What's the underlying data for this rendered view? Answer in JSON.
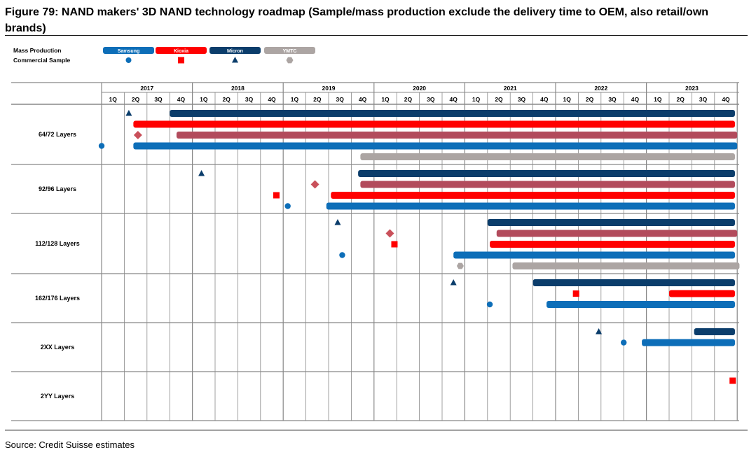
{
  "title": "Figure 79: NAND makers' 3D NAND technology roadmap (Sample/mass production exclude the delivery time to OEM, also retail/own brands)",
  "source": "Source: Credit Suisse estimates",
  "colors": {
    "Samsung": "#0d6eb8",
    "Kioxia": "#ff0000",
    "Micron": "#0b3d6b",
    "YMTC": "#aca5a3",
    "sample_diamond": "#c9505a",
    "bar_micron_alt": "#b24b5c",
    "grid": "#888888"
  },
  "chart_data": {
    "type": "gantt",
    "legend": {
      "placement": "top-left",
      "row_labels": [
        "Mass Production",
        "Commercial Sample"
      ],
      "entries": [
        {
          "name": "Samsung",
          "color": "#0d6eb8",
          "marker": "circle"
        },
        {
          "name": "Kioxia",
          "color": "#ff0000",
          "marker": "square"
        },
        {
          "name": "Micron",
          "color": "#0b3d6b",
          "marker": "triangle"
        },
        {
          "name": "YMTC",
          "color": "#aca5a3",
          "marker": "hexagon"
        }
      ]
    },
    "years": [
      "2017",
      "2018",
      "2019",
      "2020",
      "2021",
      "2022",
      "2023"
    ],
    "quarters": [
      "1Q",
      "2Q",
      "3Q",
      "4Q"
    ],
    "rows": [
      {
        "label": "64/72 Layers",
        "bars": [
          {
            "color": "#0b3d6b",
            "start": 3.0,
            "end": 27.9
          },
          {
            "color": "#ff0000",
            "start": 1.4,
            "end": 27.9
          },
          {
            "color": "#b24b5c",
            "start": 3.3,
            "end": 28.0
          },
          {
            "color": "#0d6eb8",
            "start": 1.4,
            "end": 28.0
          },
          {
            "color": "#aca5a3",
            "start": 11.4,
            "end": 27.9
          }
        ],
        "markers": [
          {
            "shape": "triangle",
            "color": "#0b3d6b",
            "x": 1.2,
            "lane": 0
          },
          {
            "shape": "diamond",
            "color": "#c9505a",
            "x": 1.6,
            "lane": 2
          },
          {
            "shape": "circle",
            "color": "#0d6eb8",
            "x": 0.0,
            "lane": 3
          }
        ]
      },
      {
        "label": "92/96 Layers",
        "bars": [
          {
            "color": "#0b3d6b",
            "start": 11.3,
            "end": 27.9
          },
          {
            "color": "#b24b5c",
            "start": 11.4,
            "end": 27.9
          },
          {
            "color": "#ff0000",
            "start": 10.1,
            "end": 27.9
          },
          {
            "color": "#0d6eb8",
            "start": 9.9,
            "end": 27.9
          }
        ],
        "markers": [
          {
            "shape": "triangle",
            "color": "#0b3d6b",
            "x": 4.4,
            "lane": 0
          },
          {
            "shape": "diamond",
            "color": "#c9505a",
            "x": 9.4,
            "lane": 1
          },
          {
            "shape": "square",
            "color": "#ff0000",
            "x": 7.7,
            "lane": 2
          },
          {
            "shape": "circle",
            "color": "#0d6eb8",
            "x": 8.2,
            "lane": 3
          }
        ]
      },
      {
        "label": "112/128 Layers",
        "bars": [
          {
            "color": "#0b3d6b",
            "start": 17.0,
            "end": 27.9
          },
          {
            "color": "#b24b5c",
            "start": 17.4,
            "end": 28.0
          },
          {
            "color": "#ff0000",
            "start": 17.1,
            "end": 27.9
          },
          {
            "color": "#0d6eb8",
            "start": 15.5,
            "end": 27.9
          },
          {
            "color": "#aca5a3",
            "start": 18.1,
            "end": 28.1
          }
        ],
        "markers": [
          {
            "shape": "triangle",
            "color": "#0b3d6b",
            "x": 10.4,
            "lane": 0
          },
          {
            "shape": "diamond",
            "color": "#c9505a",
            "x": 12.7,
            "lane": 1
          },
          {
            "shape": "square",
            "color": "#ff0000",
            "x": 12.9,
            "lane": 2
          },
          {
            "shape": "circle",
            "color": "#0d6eb8",
            "x": 10.6,
            "lane": 3
          },
          {
            "shape": "hexagon",
            "color": "#aca5a3",
            "x": 15.8,
            "lane": 4
          }
        ]
      },
      {
        "label": "162/176 Layers",
        "bars": [
          {
            "color": "#0b3d6b",
            "start": 19.0,
            "end": 27.9
          },
          {
            "color": "#ff0000",
            "start": 25.0,
            "end": 27.9
          },
          {
            "color": "#0d6eb8",
            "start": 19.6,
            "end": 27.9
          }
        ],
        "markers": [
          {
            "shape": "triangle",
            "color": "#0b3d6b",
            "x": 15.5,
            "lane": 0
          },
          {
            "shape": "square",
            "color": "#ff0000",
            "x": 20.9,
            "lane": 1
          },
          {
            "shape": "circle",
            "color": "#0d6eb8",
            "x": 17.1,
            "lane": 2
          }
        ]
      },
      {
        "label": "2XX Layers",
        "bars": [
          {
            "color": "#0b3d6b",
            "start": 26.1,
            "end": 27.9
          },
          {
            "color": "#0d6eb8",
            "start": 23.8,
            "end": 27.9
          }
        ],
        "markers": [
          {
            "shape": "triangle",
            "color": "#0b3d6b",
            "x": 21.9,
            "lane": 0
          },
          {
            "shape": "circle",
            "color": "#0d6eb8",
            "x": 23.0,
            "lane": 1
          }
        ]
      },
      {
        "label": "2YY Layers",
        "bars": [],
        "markers": [
          {
            "shape": "square",
            "color": "#ff0000",
            "x": 27.8,
            "lane": 0
          }
        ]
      }
    ]
  }
}
